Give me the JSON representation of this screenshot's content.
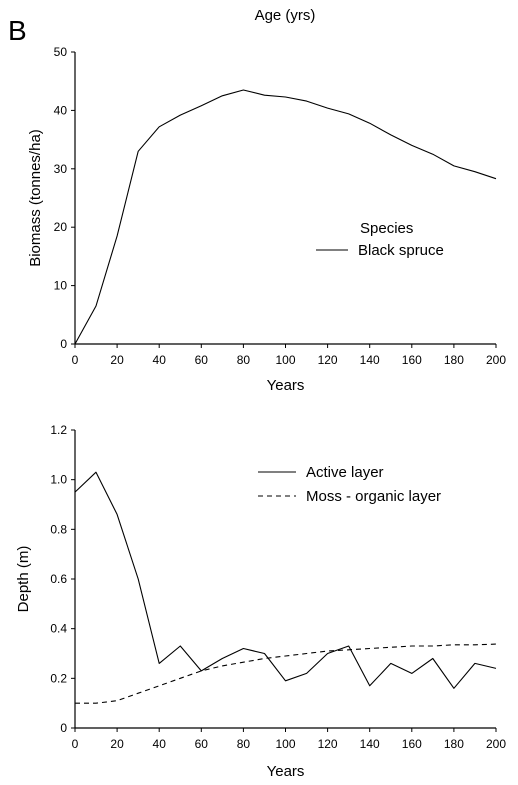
{
  "figure": {
    "panel_letter": "B",
    "top_title": "Age (yrs)"
  },
  "chart_data": [
    {
      "type": "line",
      "xlabel": "Years",
      "ylabel": "Biomass (tonnes/ha)",
      "xlim": [
        0,
        200
      ],
      "ylim": [
        0,
        50
      ],
      "xticks": [
        "0",
        "20",
        "40",
        "60",
        "80",
        "100",
        "120",
        "140",
        "160",
        "180",
        "200"
      ],
      "yticks": [
        "0",
        "10",
        "20",
        "30",
        "40",
        "50"
      ],
      "grid": false,
      "legend_title": "Species",
      "legend_placement": "center-right",
      "series": [
        {
          "name": "Black spruce",
          "style": "solid",
          "x": [
            0,
            10,
            20,
            30,
            40,
            50,
            60,
            70,
            80,
            90,
            100,
            110,
            120,
            130,
            140,
            150,
            160,
            170,
            180,
            190,
            200
          ],
          "y": [
            0,
            6.5,
            18.5,
            33,
            37.2,
            39.2,
            40.8,
            42.5,
            43.5,
            42.6,
            42.3,
            41.6,
            40.4,
            39.4,
            37.8,
            35.8,
            34,
            32.5,
            30.5,
            29.5,
            28.3
          ]
        }
      ]
    },
    {
      "type": "line",
      "xlabel": "Years",
      "ylabel": "Depth (m)",
      "xlim": [
        0,
        200
      ],
      "ylim": [
        0,
        1.2
      ],
      "xticks": [
        "0",
        "20",
        "40",
        "60",
        "80",
        "100",
        "120",
        "140",
        "160",
        "180",
        "200"
      ],
      "yticks": [
        "0",
        "0.2",
        "0.4",
        "0.6",
        "0.8",
        "1.0",
        "1.2"
      ],
      "grid": false,
      "legend_placement": "top-right",
      "series": [
        {
          "name": "Active layer",
          "style": "solid",
          "x": [
            0,
            10,
            20,
            30,
            40,
            50,
            60,
            70,
            80,
            90,
            100,
            110,
            120,
            130,
            140,
            150,
            160,
            170,
            180,
            190,
            200
          ],
          "y": [
            0.95,
            1.03,
            0.86,
            0.6,
            0.26,
            0.33,
            0.23,
            0.28,
            0.32,
            0.3,
            0.19,
            0.22,
            0.3,
            0.33,
            0.17,
            0.26,
            0.22,
            0.28,
            0.16,
            0.26,
            0.24
          ]
        },
        {
          "name": "Moss - organic layer",
          "style": "dashed",
          "x": [
            0,
            10,
            20,
            30,
            40,
            50,
            60,
            70,
            80,
            90,
            100,
            110,
            120,
            130,
            140,
            150,
            160,
            170,
            180,
            190,
            200
          ],
          "y": [
            0.1,
            0.1,
            0.11,
            0.14,
            0.17,
            0.2,
            0.23,
            0.25,
            0.265,
            0.28,
            0.29,
            0.3,
            0.31,
            0.315,
            0.32,
            0.325,
            0.33,
            0.33,
            0.335,
            0.335,
            0.338
          ]
        }
      ]
    }
  ]
}
